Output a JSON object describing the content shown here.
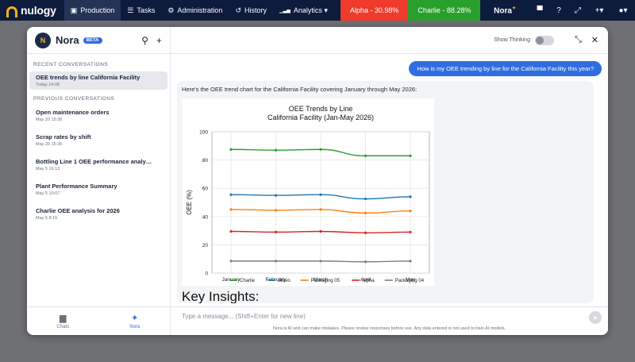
{
  "topnav": {
    "logo": "nulogy",
    "items": [
      {
        "icon": "▣",
        "label": "Production"
      },
      {
        "icon": "☰",
        "label": "Tasks"
      },
      {
        "icon": "⚙",
        "label": "Administration"
      },
      {
        "icon": "↺",
        "label": "History"
      },
      {
        "icon": "▁▃▅",
        "label": "Analytics ▾"
      }
    ],
    "site_alpha": "Alpha - 30.98%",
    "site_charlie": "Charlie - 88.28%",
    "nora_label": "Nora",
    "colors": {
      "nav_bg": "#0d1b3d",
      "alpha": "#ee3b2b",
      "charlie": "#2aa02c",
      "accent": "#2f6de1"
    }
  },
  "sidebar": {
    "title": "Nora",
    "beta": "BETA",
    "recent_label": "RECENT CONVERSATIONS",
    "recent": [
      {
        "title": "OEE trends by line California Facility",
        "time": "Today 14:08"
      }
    ],
    "previous_label": "PREVIOUS CONVERSATIONS",
    "previous": [
      {
        "title": "Open maintenance orders",
        "time": "May 20 15:36"
      },
      {
        "title": "Scrap rates by shift",
        "time": "May 20 15:35"
      },
      {
        "title": "Bottling Line 1 OEE performance analy…",
        "time": "May 5 16:13"
      },
      {
        "title": "Plant Performance Summary",
        "time": "May 5 10:07"
      },
      {
        "title": "Charlie OEE analysis for 2026",
        "time": "May 5 8:15"
      }
    ],
    "tabs": [
      {
        "label": "Chats"
      },
      {
        "label": "Nora"
      }
    ]
  },
  "main": {
    "show_thinking": "Show Thinking",
    "user_message": "How is my OEE trending by line for the California Facility this year?",
    "bot_intro": "Here's the OEE trend chart for the California Facility covering January through May 2026:",
    "insights_heading": "Key Insights:",
    "composer_placeholder": "Type a message... (Shift+Enter for new line)",
    "disclaimer": "Nora is AI and can make mistakes. Please review responses before use. Any data entered is not used to train AI models."
  },
  "chart_data": {
    "type": "line",
    "title": "OEE Trends by Line",
    "subtitle": "California Facility (Jan-May 2026)",
    "xlabel": "",
    "ylabel": "OEE (%)",
    "categories": [
      "January",
      "February",
      "March",
      "April",
      "May"
    ],
    "ylim": [
      0,
      100
    ],
    "yticks": [
      0,
      20,
      40,
      60,
      80,
      100
    ],
    "grid": true,
    "legend": "bottom",
    "series": [
      {
        "name": "Charlie",
        "color": "#2aa02c",
        "values": [
          87.5,
          87,
          87.5,
          83,
          83
        ]
      },
      {
        "name": "Bravo",
        "color": "#1f77b4",
        "values": [
          55.5,
          55,
          55.5,
          52.5,
          54
        ]
      },
      {
        "name": "Packaging 05",
        "color": "#ff7f0e",
        "values": [
          45,
          44.5,
          45,
          42.5,
          44
        ]
      },
      {
        "name": "Alpha",
        "color": "#d62728",
        "values": [
          29.5,
          29,
          29.5,
          28.5,
          29
        ]
      },
      {
        "name": "Packaging 04",
        "color": "#7f7f7f",
        "values": [
          8.5,
          8.5,
          8.5,
          8,
          8.5
        ]
      }
    ]
  }
}
